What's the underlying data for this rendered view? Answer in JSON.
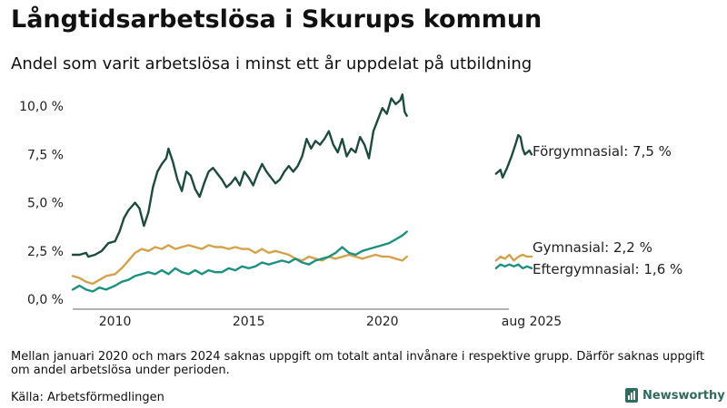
{
  "header": {
    "title": "Långtidsarbetslösa i Skurups kommun",
    "subtitle": "Andel som varit arbetslösa i minst ett år uppdelat på utbildning"
  },
  "footer": {
    "note": "Mellan januari 2020 och mars 2024 saknas uppgift om totalt antal invånare i respektive grupp. Därför saknas uppgift om andel arbetslösa under perioden.",
    "source": "Källa: Arbetsförmedlingen",
    "brand": "Newsworthy",
    "brand_icon": "bar-chart-icon"
  },
  "chart_data": {
    "type": "line",
    "x_domain": [
      "2008-06",
      "2025-08"
    ],
    "ylim": [
      0,
      10.8
    ],
    "y_ticks": [
      {
        "value": 0,
        "label": "0,0 %"
      },
      {
        "value": 2.5,
        "label": "2,5 %"
      },
      {
        "value": 5,
        "label": "5,0 %"
      },
      {
        "value": 7.5,
        "label": "7,5 %"
      },
      {
        "value": 10,
        "label": "10,0 %"
      }
    ],
    "x_ticks": [
      {
        "value": "2010-01",
        "label": "2010"
      },
      {
        "value": "2015-01",
        "label": "2015"
      },
      {
        "value": "2020-01",
        "label": "2020"
      },
      {
        "value": "2025-08",
        "label": "aug 2025"
      }
    ],
    "grid": false,
    "series": [
      {
        "name": "Förgymnasial",
        "end_label": "Förgymnasial: 7,5 %",
        "color": "#1f4a40",
        "segments": [
          [
            [
              "2008-06",
              2.3
            ],
            [
              "2008-09",
              2.3
            ],
            [
              "2008-12",
              2.4
            ],
            [
              "2009-01",
              2.2
            ],
            [
              "2009-04",
              2.3
            ],
            [
              "2009-07",
              2.5
            ],
            [
              "2009-10",
              2.9
            ],
            [
              "2010-01",
              3.0
            ],
            [
              "2010-03",
              3.5
            ],
            [
              "2010-05",
              4.2
            ],
            [
              "2010-07",
              4.6
            ],
            [
              "2010-10",
              5.0
            ],
            [
              "2010-12",
              4.7
            ],
            [
              "2011-02",
              3.8
            ],
            [
              "2011-04",
              4.5
            ],
            [
              "2011-06",
              5.8
            ],
            [
              "2011-08",
              6.6
            ],
            [
              "2011-10",
              7.0
            ],
            [
              "2011-12",
              7.3
            ],
            [
              "2012-01",
              7.8
            ],
            [
              "2012-03",
              7.1
            ],
            [
              "2012-05",
              6.2
            ],
            [
              "2012-07",
              5.6
            ],
            [
              "2012-09",
              6.6
            ],
            [
              "2012-11",
              6.4
            ],
            [
              "2013-01",
              5.7
            ],
            [
              "2013-03",
              5.3
            ],
            [
              "2013-05",
              6.0
            ],
            [
              "2013-07",
              6.6
            ],
            [
              "2013-09",
              6.8
            ],
            [
              "2013-11",
              6.5
            ],
            [
              "2014-01",
              6.2
            ],
            [
              "2014-03",
              5.8
            ],
            [
              "2014-05",
              6.0
            ],
            [
              "2014-07",
              6.3
            ],
            [
              "2014-09",
              5.9
            ],
            [
              "2014-11",
              6.6
            ],
            [
              "2015-01",
              6.3
            ],
            [
              "2015-03",
              5.9
            ],
            [
              "2015-05",
              6.5
            ],
            [
              "2015-07",
              7.0
            ],
            [
              "2015-09",
              6.6
            ],
            [
              "2015-11",
              6.3
            ],
            [
              "2016-01",
              6.0
            ],
            [
              "2016-03",
              6.2
            ],
            [
              "2016-05",
              6.6
            ],
            [
              "2016-07",
              6.9
            ],
            [
              "2016-09",
              6.6
            ],
            [
              "2016-11",
              6.9
            ],
            [
              "2017-01",
              7.4
            ],
            [
              "2017-03",
              8.3
            ],
            [
              "2017-05",
              7.8
            ],
            [
              "2017-07",
              8.2
            ],
            [
              "2017-09",
              8.0
            ],
            [
              "2017-11",
              8.3
            ],
            [
              "2018-01",
              8.7
            ],
            [
              "2018-03",
              8.0
            ],
            [
              "2018-05",
              7.6
            ],
            [
              "2018-07",
              8.3
            ],
            [
              "2018-09",
              7.4
            ],
            [
              "2018-11",
              7.8
            ],
            [
              "2019-01",
              7.6
            ],
            [
              "2019-03",
              8.4
            ],
            [
              "2019-05",
              8.0
            ],
            [
              "2019-07",
              7.3
            ],
            [
              "2019-09",
              8.7
            ],
            [
              "2019-11",
              9.3
            ],
            [
              "2020-01",
              9.9
            ],
            [
              "2020-03",
              9.6
            ],
            [
              "2020-05",
              10.4
            ],
            [
              "2020-07",
              10.1
            ],
            [
              "2020-09",
              10.3
            ],
            [
              "2020-10",
              10.6
            ],
            [
              "2020-11",
              9.7
            ],
            [
              "2020-12",
              9.5
            ]
          ],
          [
            [
              "2024-04",
              6.5
            ],
            [
              "2024-06",
              6.7
            ],
            [
              "2024-07",
              6.3
            ],
            [
              "2024-09",
              6.8
            ],
            [
              "2024-11",
              7.4
            ],
            [
              "2025-01",
              8.1
            ],
            [
              "2025-02",
              8.5
            ],
            [
              "2025-03",
              8.4
            ],
            [
              "2025-04",
              7.8
            ],
            [
              "2025-05",
              7.5
            ],
            [
              "2025-06",
              7.6
            ],
            [
              "2025-07",
              7.7
            ],
            [
              "2025-08",
              7.5
            ]
          ]
        ]
      },
      {
        "name": "Gymnasial",
        "end_label": "Gymnasial: 2,2 %",
        "color": "#d4a24a",
        "segments": [
          [
            [
              "2008-06",
              1.2
            ],
            [
              "2008-09",
              1.1
            ],
            [
              "2008-12",
              0.9
            ],
            [
              "2009-03",
              0.8
            ],
            [
              "2009-06",
              1.0
            ],
            [
              "2009-09",
              1.2
            ],
            [
              "2010-01",
              1.3
            ],
            [
              "2010-04",
              1.6
            ],
            [
              "2010-07",
              2.0
            ],
            [
              "2010-10",
              2.4
            ],
            [
              "2011-01",
              2.6
            ],
            [
              "2011-04",
              2.5
            ],
            [
              "2011-07",
              2.7
            ],
            [
              "2011-10",
              2.6
            ],
            [
              "2012-01",
              2.8
            ],
            [
              "2012-04",
              2.6
            ],
            [
              "2012-07",
              2.7
            ],
            [
              "2012-10",
              2.8
            ],
            [
              "2013-01",
              2.7
            ],
            [
              "2013-04",
              2.6
            ],
            [
              "2013-07",
              2.8
            ],
            [
              "2013-10",
              2.7
            ],
            [
              "2014-01",
              2.7
            ],
            [
              "2014-04",
              2.6
            ],
            [
              "2014-07",
              2.7
            ],
            [
              "2014-10",
              2.6
            ],
            [
              "2015-01",
              2.6
            ],
            [
              "2015-04",
              2.4
            ],
            [
              "2015-07",
              2.6
            ],
            [
              "2015-10",
              2.4
            ],
            [
              "2016-01",
              2.5
            ],
            [
              "2016-04",
              2.4
            ],
            [
              "2016-07",
              2.3
            ],
            [
              "2016-10",
              2.1
            ],
            [
              "2017-01",
              2.0
            ],
            [
              "2017-04",
              2.2
            ],
            [
              "2017-07",
              2.1
            ],
            [
              "2017-10",
              2.0
            ],
            [
              "2018-01",
              2.2
            ],
            [
              "2018-04",
              2.1
            ],
            [
              "2018-07",
              2.2
            ],
            [
              "2018-10",
              2.3
            ],
            [
              "2019-01",
              2.2
            ],
            [
              "2019-04",
              2.1
            ],
            [
              "2019-07",
              2.2
            ],
            [
              "2019-10",
              2.3
            ],
            [
              "2020-01",
              2.2
            ],
            [
              "2020-04",
              2.2
            ],
            [
              "2020-07",
              2.1
            ],
            [
              "2020-10",
              2.0
            ],
            [
              "2020-12",
              2.2
            ]
          ],
          [
            [
              "2024-04",
              2.0
            ],
            [
              "2024-06",
              2.2
            ],
            [
              "2024-08",
              2.1
            ],
            [
              "2024-10",
              2.3
            ],
            [
              "2024-12",
              2.0
            ],
            [
              "2025-02",
              2.2
            ],
            [
              "2025-04",
              2.3
            ],
            [
              "2025-06",
              2.2
            ],
            [
              "2025-08",
              2.2
            ]
          ]
        ]
      },
      {
        "name": "Eftergymnasial",
        "end_label": "Eftergymnasial: 1,6 %",
        "color": "#1e9080",
        "segments": [
          [
            [
              "2008-06",
              0.5
            ],
            [
              "2008-09",
              0.7
            ],
            [
              "2008-12",
              0.5
            ],
            [
              "2009-03",
              0.4
            ],
            [
              "2009-06",
              0.6
            ],
            [
              "2009-09",
              0.5
            ],
            [
              "2010-01",
              0.7
            ],
            [
              "2010-04",
              0.9
            ],
            [
              "2010-07",
              1.0
            ],
            [
              "2010-10",
              1.2
            ],
            [
              "2011-01",
              1.3
            ],
            [
              "2011-04",
              1.4
            ],
            [
              "2011-07",
              1.3
            ],
            [
              "2011-10",
              1.5
            ],
            [
              "2012-01",
              1.3
            ],
            [
              "2012-04",
              1.6
            ],
            [
              "2012-07",
              1.4
            ],
            [
              "2012-10",
              1.3
            ],
            [
              "2013-01",
              1.5
            ],
            [
              "2013-04",
              1.3
            ],
            [
              "2013-07",
              1.5
            ],
            [
              "2013-10",
              1.4
            ],
            [
              "2014-01",
              1.4
            ],
            [
              "2014-04",
              1.6
            ],
            [
              "2014-07",
              1.5
            ],
            [
              "2014-10",
              1.7
            ],
            [
              "2015-01",
              1.6
            ],
            [
              "2015-04",
              1.7
            ],
            [
              "2015-07",
              1.9
            ],
            [
              "2015-10",
              1.8
            ],
            [
              "2016-01",
              1.9
            ],
            [
              "2016-04",
              2.0
            ],
            [
              "2016-07",
              1.9
            ],
            [
              "2016-10",
              2.1
            ],
            [
              "2017-01",
              1.9
            ],
            [
              "2017-04",
              1.8
            ],
            [
              "2017-07",
              2.0
            ],
            [
              "2017-10",
              2.1
            ],
            [
              "2018-01",
              2.2
            ],
            [
              "2018-04",
              2.4
            ],
            [
              "2018-07",
              2.7
            ],
            [
              "2018-10",
              2.4
            ],
            [
              "2019-01",
              2.3
            ],
            [
              "2019-04",
              2.5
            ],
            [
              "2019-07",
              2.6
            ],
            [
              "2019-10",
              2.7
            ],
            [
              "2020-01",
              2.8
            ],
            [
              "2020-04",
              2.9
            ],
            [
              "2020-07",
              3.1
            ],
            [
              "2020-10",
              3.3
            ],
            [
              "2020-12",
              3.5
            ]
          ],
          [
            [
              "2024-04",
              1.6
            ],
            [
              "2024-06",
              1.8
            ],
            [
              "2024-08",
              1.7
            ],
            [
              "2024-10",
              1.8
            ],
            [
              "2024-12",
              1.7
            ],
            [
              "2025-02",
              1.8
            ],
            [
              "2025-04",
              1.6
            ],
            [
              "2025-06",
              1.7
            ],
            [
              "2025-08",
              1.6
            ]
          ]
        ]
      }
    ]
  }
}
